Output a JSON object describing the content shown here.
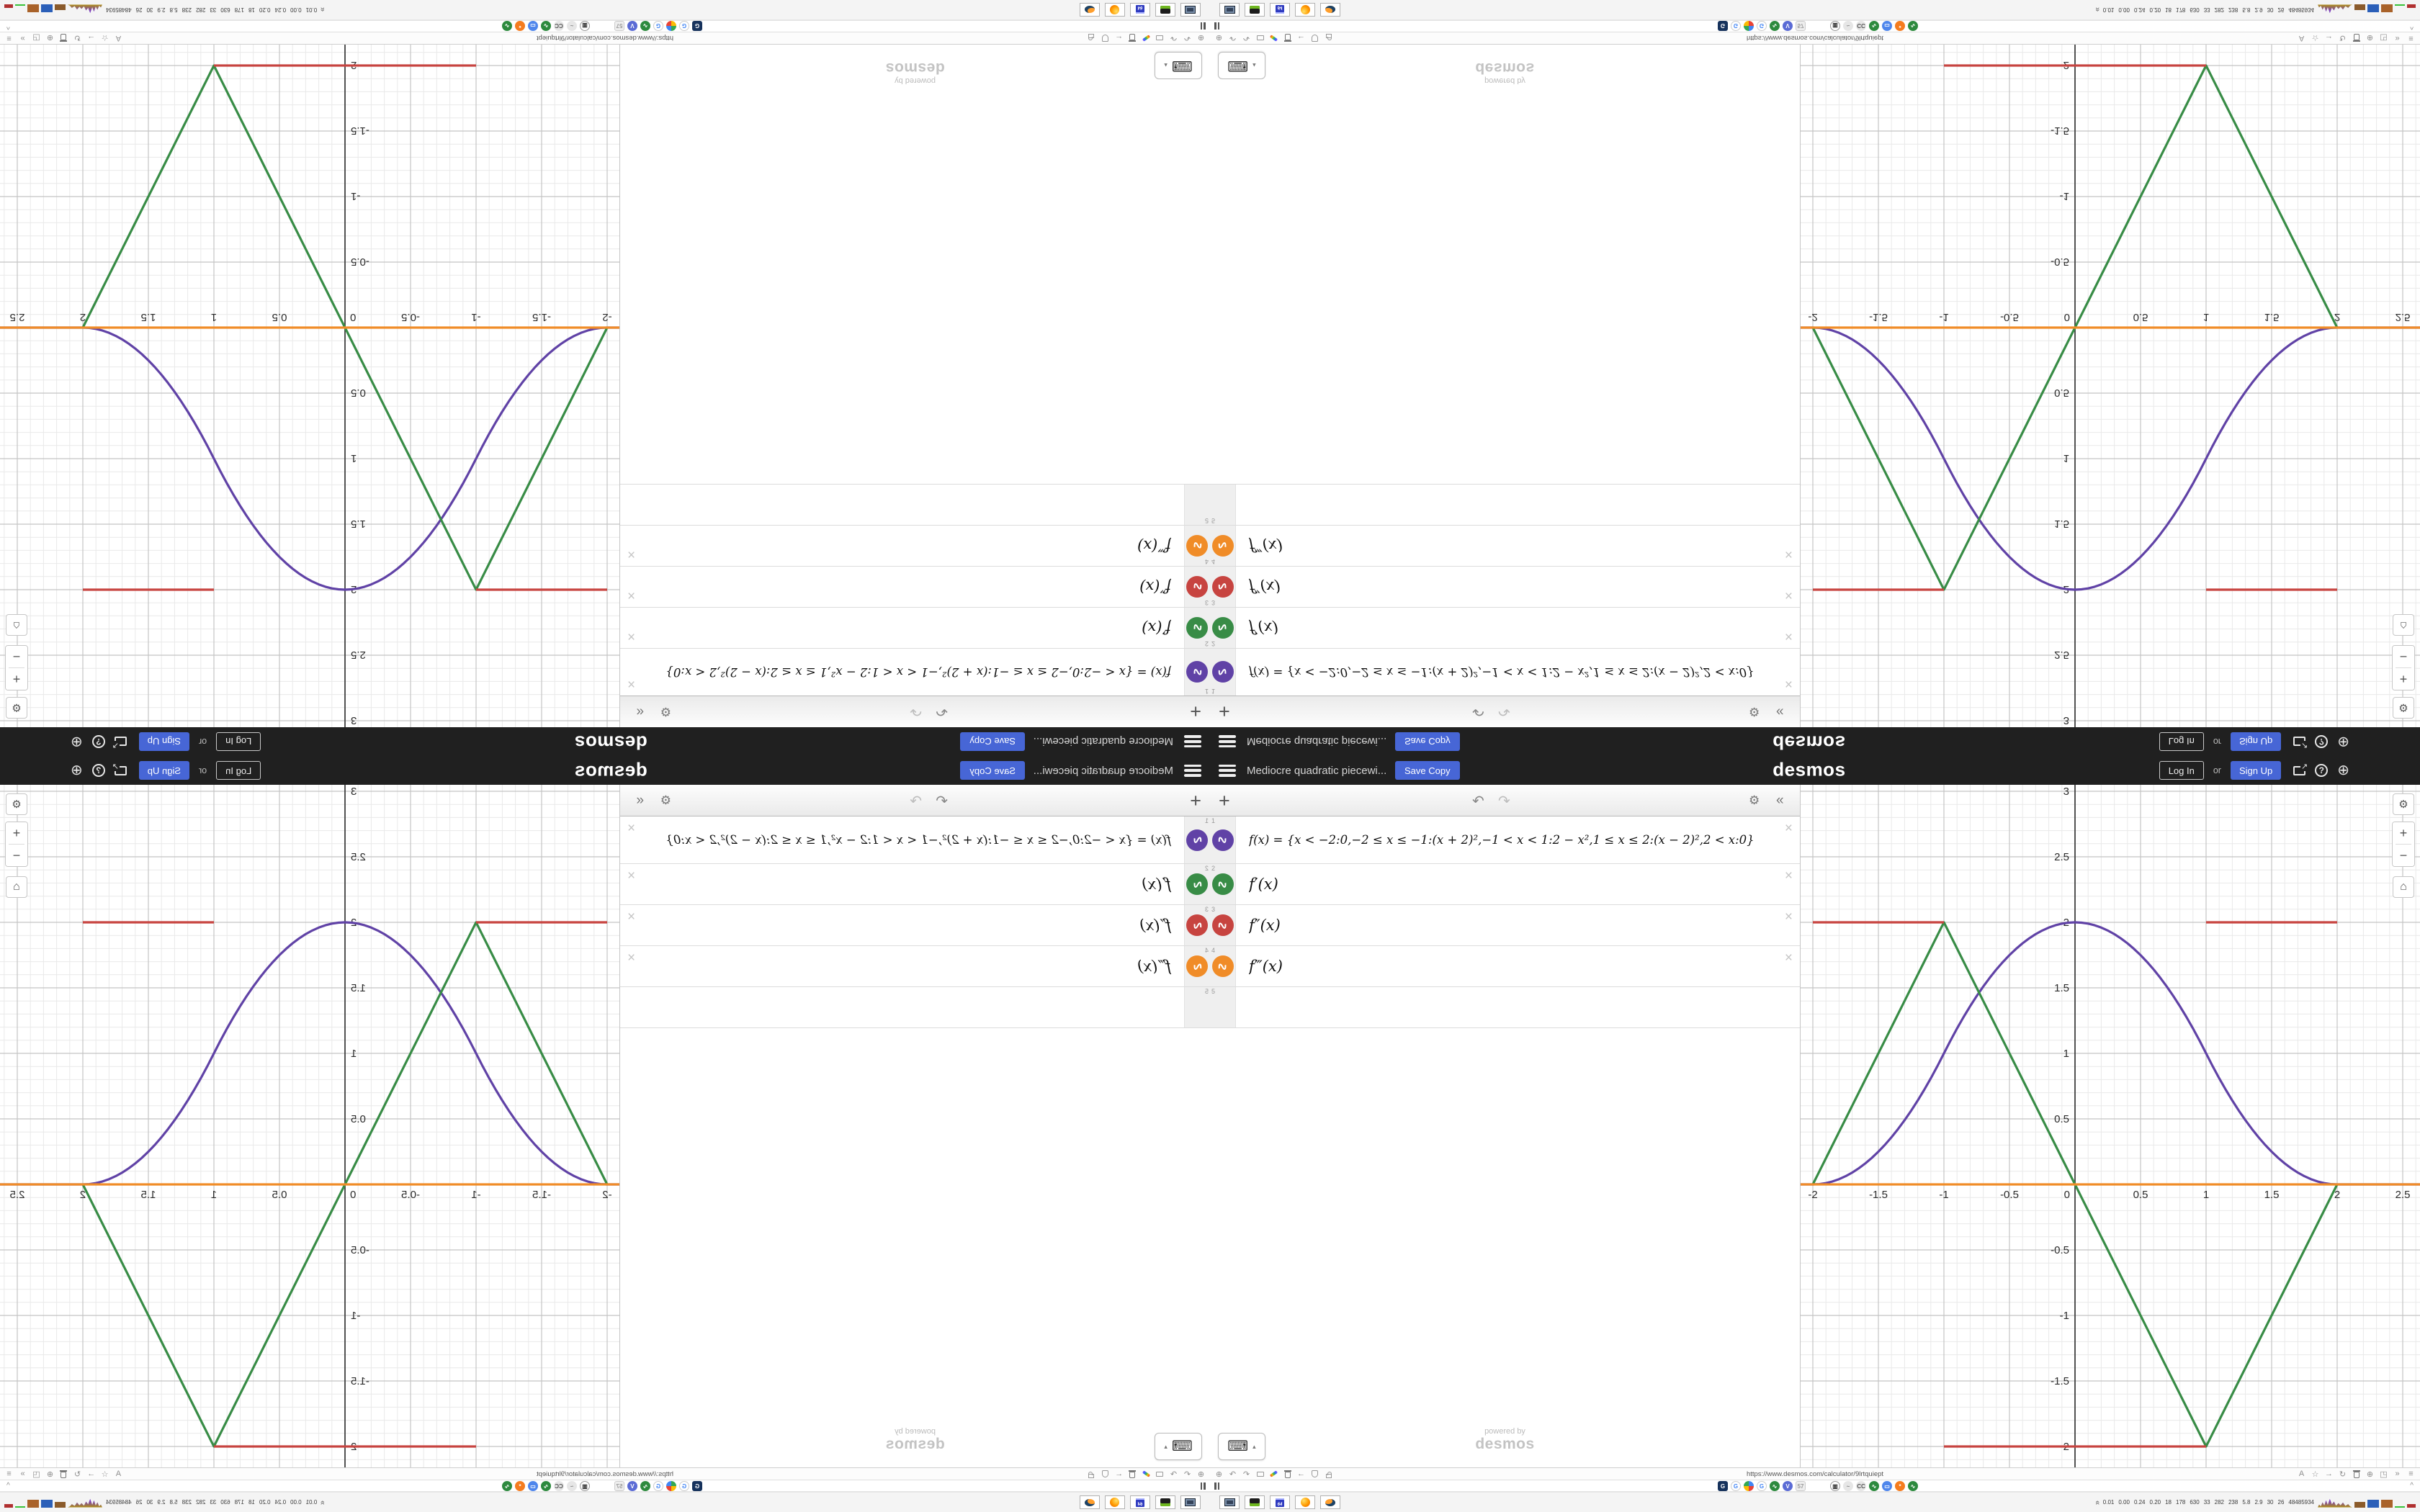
{
  "desmos": {
    "header": {
      "title": "Mediocre quadratic piecewi...",
      "save_copy": "Save Copy",
      "logo": "desmos",
      "log_in": "Log In",
      "or": "or",
      "sign_up": "Sign Up",
      "accent_blue": "#4766d6",
      "bar_color": "#202020"
    },
    "expressions": {
      "rows": [
        {
          "num": "1",
          "icon_color": "#6042a6",
          "math": "f(x) = {x < −2:0,−2 ≤ x ≤ −1:(x + 2)²,−1 < x < 1:2 − x²,1 ≤ x ≤ 2:(x − 2)²,2 < x:0}"
        },
        {
          "num": "2",
          "icon_color": "#388c46",
          "math": "f′(x)"
        },
        {
          "num": "3",
          "icon_color": "#c74440",
          "math": "f″(x)"
        },
        {
          "num": "4",
          "icon_color": "#f08c28",
          "math": "f‴(x)"
        },
        {
          "num": "5",
          "icon_color": "",
          "math": ""
        }
      ],
      "icon_glyph": "∿",
      "close_glyph": "×",
      "watermark": {
        "line1": "powered by",
        "line2": "desmos"
      }
    }
  },
  "browser": {
    "url": "https://www.desmos.com/calculator/9lrtquiept",
    "left_icons": [
      {
        "name": "page-info-globe-icon",
        "glyph": "⊕"
      },
      {
        "name": "undo-icon",
        "glyph": "↶"
      },
      {
        "name": "redo-icon",
        "glyph": "↷"
      },
      {
        "name": "folder-icon",
        "css": "folder"
      },
      {
        "name": "marker-icon",
        "css": "marker"
      },
      {
        "name": "trash-icon",
        "css": "trash"
      },
      {
        "name": "back-icon",
        "glyph": "←"
      },
      {
        "name": "shield-icon",
        "css": "shield"
      },
      {
        "name": "lock-icon",
        "css": "lock"
      }
    ],
    "right_icons": [
      {
        "name": "translate-icon",
        "glyph": "A"
      },
      {
        "name": "star-icon",
        "glyph": "☆"
      },
      {
        "name": "forward-icon",
        "glyph": "→"
      },
      {
        "name": "reload-icon",
        "glyph": "↻"
      },
      {
        "name": "archive-icon",
        "css": "trash"
      },
      {
        "name": "globe-icon",
        "glyph": "⊕"
      },
      {
        "name": "extension-icon",
        "glyph": "◳"
      },
      {
        "name": "overflow-chevrons-icon",
        "glyph": "»"
      },
      {
        "name": "browser-menu-icon",
        "glyph": "≡"
      }
    ],
    "bookmarks": [
      {
        "name": "bookmark-g-dark",
        "shape": "sq",
        "bg": "#16325c",
        "fg": "#ffffff",
        "glyph": "G"
      },
      {
        "name": "bookmark-google",
        "shape": "",
        "bg": "#ffffff",
        "fg": "#4285f4",
        "glyph": "G",
        "border": "#cccccc"
      },
      {
        "name": "bookmark-color-pie",
        "shape": "",
        "bg": "pie",
        "fg": "",
        "glyph": ""
      },
      {
        "name": "bookmark-google-2",
        "shape": "",
        "bg": "#ffffff",
        "fg": "#4285f4",
        "glyph": "G",
        "border": "#cccccc"
      },
      {
        "name": "bookmark-wave-green",
        "shape": "",
        "bg": "#2d8a3e",
        "fg": "#ffffff",
        "glyph": "∿"
      },
      {
        "name": "bookmark-vk",
        "shape": "",
        "bg": "#5b6bd5",
        "fg": "#ffffff",
        "glyph": "V"
      },
      {
        "name": "bookmark-57",
        "shape": "sq",
        "bg": "#eeeeee",
        "fg": "#999999",
        "glyph": "57",
        "border": "#cccccc"
      },
      {
        "name": "gap",
        "shape": "gap"
      },
      {
        "name": "bookmark-trash",
        "shape": "",
        "bg": "#ffffff",
        "fg": "#222222",
        "glyph": "▥",
        "border": "#999999"
      },
      {
        "name": "bookmark-fish-gray",
        "shape": "",
        "bg": "#e6e6e6",
        "fg": "#888888",
        "glyph": "~"
      },
      {
        "name": "bookmark-cc",
        "shape": "",
        "bg": "#e6e6e6",
        "fg": "#555555",
        "glyph": "CC"
      },
      {
        "name": "bookmark-wave-green-2",
        "shape": "",
        "bg": "#2d8a3e",
        "fg": "#ffffff",
        "glyph": "∿"
      },
      {
        "name": "bookmark-chat-blue",
        "shape": "",
        "bg": "#4f86ec",
        "fg": "#ffffff",
        "glyph": "▭"
      },
      {
        "name": "bookmark-gear-orange",
        "shape": "",
        "bg": "#f57c1f",
        "fg": "#ffffff",
        "glyph": "*"
      },
      {
        "name": "bookmark-wave-green-3",
        "shape": "",
        "bg": "#2d8a3e",
        "fg": "#ffffff",
        "glyph": "∿"
      }
    ]
  },
  "taskbar": {
    "apps": [
      {
        "name": "taskbar-screenshot-app",
        "icon": "monitor"
      },
      {
        "name": "taskbar-device-app",
        "icon": "device"
      },
      {
        "name": "taskbar-floppy64-app",
        "icon": "floppy",
        "label": "64"
      },
      {
        "name": "taskbar-firefox-app",
        "icon": "ff"
      },
      {
        "name": "taskbar-blender-app",
        "icon": "bl"
      }
    ],
    "tray_values": [
      "0.01",
      "0.00",
      "0.24",
      "0.20",
      "18",
      "178",
      "630",
      "33",
      "282",
      "238",
      "5.8",
      "2.9",
      "30",
      "26",
      "48485934"
    ],
    "tray_graphs": [
      {
        "type": "spark",
        "w": 48,
        "h": 13,
        "color": "#7b3fbf"
      },
      {
        "type": "bar",
        "w": 15,
        "h": 8,
        "color": "#8a5a2a"
      },
      {
        "type": "bar",
        "w": 16,
        "h": 11,
        "color": "#2b5fb8"
      },
      {
        "type": "bar",
        "w": 16,
        "h": 11,
        "color": "#a9622a"
      },
      {
        "type": "bar",
        "w": 14,
        "h": 2,
        "color": "#39c239"
      },
      {
        "type": "bar",
        "w": 12,
        "h": 5,
        "color": "#b03030"
      }
    ]
  },
  "chart_data": {
    "type": "line",
    "title": "",
    "xlabel": "",
    "ylabel": "",
    "grid": {
      "minor_color": "#e9e9e9",
      "major_color": "#c4c4c4",
      "axis_color": "#404040",
      "minor": 0.1
    },
    "axes": {
      "xmin": -2.0934,
      "xmax": 2.6319,
      "ymin": -2.1593,
      "ymax": 3.0495,
      "major": 0.5,
      "minor": 0.1,
      "x_ticks": [
        {
          "v": -2,
          "label": "-2"
        },
        {
          "v": -1.5,
          "label": "-1.5"
        },
        {
          "v": -1,
          "label": "-1"
        },
        {
          "v": -0.5,
          "label": "-0.5"
        },
        {
          "v": 0,
          "label": "0"
        },
        {
          "v": 0.5,
          "label": "0.5"
        },
        {
          "v": 1,
          "label": "1"
        },
        {
          "v": 1.5,
          "label": "1.5"
        },
        {
          "v": 2,
          "label": "2"
        },
        {
          "v": 2.5,
          "label": "2.5"
        }
      ],
      "y_ticks": [
        {
          "v": 3,
          "label": "3"
        },
        {
          "v": 2.5,
          "label": "2.5"
        },
        {
          "v": 2,
          "label": "2"
        },
        {
          "v": 1.5,
          "label": "1.5"
        },
        {
          "v": 1,
          "label": "1"
        },
        {
          "v": 0.5,
          "label": "0.5"
        },
        {
          "v": -0.5,
          "label": "-0.5"
        },
        {
          "v": -1,
          "label": "-1"
        },
        {
          "v": -1.5,
          "label": "-1.5"
        },
        {
          "v": -2,
          "label": "-2"
        }
      ]
    },
    "series": [
      {
        "name": "f(x)",
        "color": "#6042a6",
        "kind": "poly-piecewise",
        "pieces": [
          {
            "from": -2.0934,
            "to": -2,
            "coef": [
              0,
              0,
              0
            ]
          },
          {
            "from": -2,
            "to": -1,
            "coef": [
              1,
              4,
              4
            ]
          },
          {
            "from": -1,
            "to": 1,
            "coef": [
              -1,
              0,
              2
            ]
          },
          {
            "from": 1,
            "to": 2,
            "coef": [
              1,
              -4,
              4
            ]
          },
          {
            "from": 2,
            "to": 2.6319,
            "coef": [
              0,
              0,
              0
            ]
          }
        ]
      },
      {
        "name": "f'(x)",
        "color": "#388c46",
        "kind": "poly-piecewise",
        "pieces": [
          {
            "from": -2,
            "to": -1,
            "coef": [
              0,
              2,
              4
            ]
          },
          {
            "from": -1,
            "to": 1,
            "coef": [
              0,
              -2,
              0
            ]
          },
          {
            "from": 1,
            "to": 2,
            "coef": [
              0,
              2,
              -4
            ]
          }
        ]
      },
      {
        "name": "f''(x)",
        "color": "#c74440",
        "kind": "segments",
        "segments": [
          {
            "from": -2,
            "to": -1,
            "y": 2
          },
          {
            "from": -1,
            "to": 1,
            "y": -2
          },
          {
            "from": 1,
            "to": 2,
            "y": 2
          }
        ]
      },
      {
        "name": "f'''(x)",
        "color": "#f08c28",
        "kind": "segments",
        "segments": [
          {
            "from": -2.0934,
            "to": 2.6319,
            "y": 0
          }
        ]
      }
    ]
  }
}
